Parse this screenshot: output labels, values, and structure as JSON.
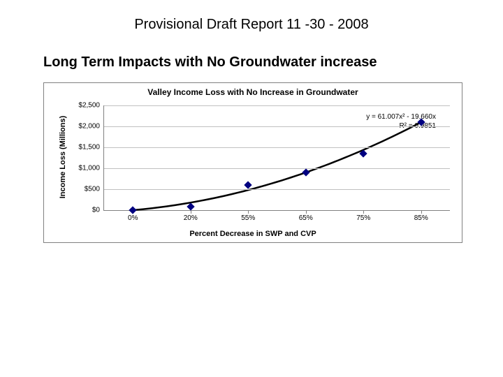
{
  "doc_header": "Provisional Draft Report 11 -30 - 2008",
  "section_title": "Long Term Impacts with No Groundwater increase",
  "chart": {
    "type": "scatter-with-trendline",
    "title": "Valley Income Loss with No Increase in Groundwater",
    "y_label": "Income Loss (Millions)",
    "x_label": "Percent Decrease in SWP and CVP",
    "background_color": "#ffffff",
    "grid_color": "#c0c0c0",
    "axis_color": "#808080",
    "title_fontsize": 12,
    "label_fontsize": 11,
    "tick_fontsize": 10,
    "y_ticks": [
      {
        "value": 0,
        "label": "$0"
      },
      {
        "value": 500,
        "label": "$500"
      },
      {
        "value": 1000,
        "label": "$1,000"
      },
      {
        "value": 1500,
        "label": "$1,500"
      },
      {
        "value": 2000,
        "label": "$2,000"
      },
      {
        "value": 2500,
        "label": "$2,500"
      }
    ],
    "ylim": [
      0,
      2500
    ],
    "x_categories": [
      "0%",
      "20%",
      "55%",
      "65%",
      "75%",
      "85%"
    ],
    "data_points": [
      {
        "x_index": 0,
        "y": 0
      },
      {
        "x_index": 1,
        "y": 80
      },
      {
        "x_index": 2,
        "y": 600
      },
      {
        "x_index": 3,
        "y": 900
      },
      {
        "x_index": 4,
        "y": 1350
      },
      {
        "x_index": 5,
        "y": 2100
      }
    ],
    "marker_color": "#000080",
    "marker_style": "diamond",
    "marker_size": 8,
    "trendline": {
      "color": "#000000",
      "width": 2.5,
      "equation_line1": "y = 61.007x² - 19.660x",
      "equation_line2": "R² = 0.9851"
    }
  }
}
